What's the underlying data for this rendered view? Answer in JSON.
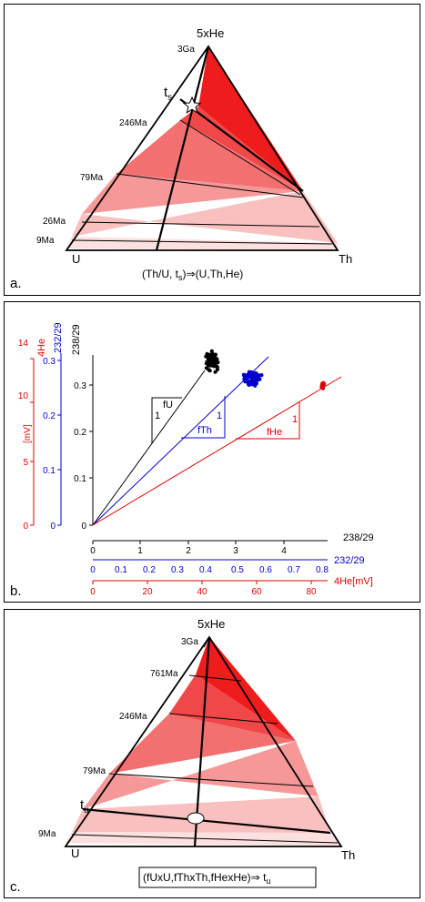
{
  "panel_a": {
    "panel_letter": "a.",
    "apex_label": "5xHe",
    "left_label": "U",
    "right_label": "Th",
    "ages": [
      "3Ga",
      "246Ma",
      "79Ma",
      "26Ma",
      "9Ma"
    ],
    "marker_label": "t",
    "marker_sub": "s",
    "caption_left": "(Th/U, t",
    "caption_sub": "s",
    "caption_right": ")⇒(U,Th,He)"
  },
  "panel_b": {
    "panel_letter": "b.",
    "axis_labels": {
      "he": "4He",
      "th": "232/29",
      "u": "238/29",
      "mv": "[mV]"
    },
    "he_ticks": [
      "0",
      "5",
      "10",
      "14"
    ],
    "th_ticks": [
      "0",
      "0.1",
      "0.2",
      "0.3"
    ],
    "u_ticks": [
      "0",
      "0.1",
      "0.2",
      "0.3"
    ],
    "x_u_label": "238/29",
    "x_u_ticks": [
      "0",
      "1",
      "2",
      "3",
      "4"
    ],
    "x_th_label": "232/29",
    "x_th_ticks": [
      "0",
      "0.1",
      "0.2",
      "0.3",
      "0.4",
      "0.5",
      "0.6",
      "0.7",
      "0.8"
    ],
    "x_he_label": "4He[mV]",
    "x_he_ticks": [
      "0",
      "20",
      "40",
      "60",
      "80"
    ],
    "slope_labels": {
      "fU": "fU",
      "fTh": "fTh",
      "fHe": "fHe",
      "one": "1"
    },
    "colors": {
      "u": "#000000",
      "th": "#0000cc",
      "he": "#e00000"
    }
  },
  "panel_c": {
    "panel_letter": "c.",
    "apex_label": "5xHe",
    "left_label": "U",
    "right_label": "Th",
    "ages": [
      "3Ga",
      "761Ma",
      "246Ma",
      "79Ma",
      "9Ma"
    ],
    "marker_label": "t",
    "marker_sub": "u",
    "caption_left": "(fUxU,fThxTh,fHexHe)⇒ t",
    "caption_sub": "u"
  },
  "colors": {
    "band1": "#ee1c1c",
    "band2": "#f04848",
    "band3": "#f37070",
    "band4": "#f69898",
    "band5": "#f9c0c0",
    "band6": "#fce0e0"
  }
}
